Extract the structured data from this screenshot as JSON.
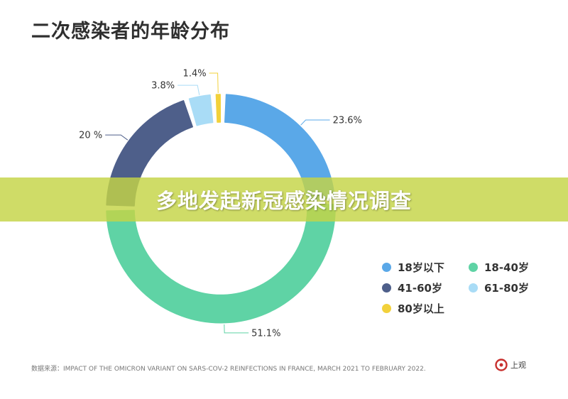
{
  "title": "二次感染者的年龄分布",
  "banner": "多地发起新冠感染情况调查",
  "source": "数据来源：IMPACT OF THE OMICRON VARIANT ON SARS-COV-2 REINFECTIONS IN FRANCE, MARCH 2021 TO FEBRUARY 2022.",
  "logo_text": "上观",
  "chart_data": {
    "type": "pie",
    "variant": "donut",
    "title": "二次感染者的年龄分布",
    "slices": [
      {
        "name": "18岁以下",
        "value": 23.6,
        "label": "23.6%",
        "color": "#5aa8e8"
      },
      {
        "name": "18-40岁",
        "value": 51.1,
        "label": "51.1%",
        "color": "#5fd3a5"
      },
      {
        "name": "41-60岁",
        "value": 20,
        "label": "20 %",
        "color": "#4e5f8a"
      },
      {
        "name": "61-80岁",
        "value": 3.8,
        "label": "3.8%",
        "color": "#a9dcf6"
      },
      {
        "name": "80岁以上",
        "value": 1.4,
        "label": "1.4%",
        "color": "#f2d13b"
      }
    ],
    "legend_position": "bottom-right"
  }
}
